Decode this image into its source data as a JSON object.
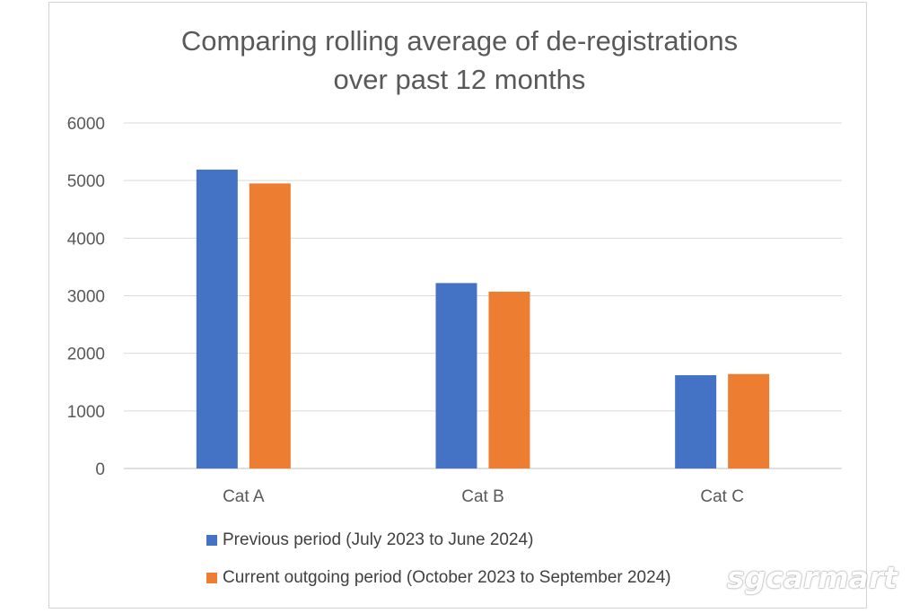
{
  "chart_data": {
    "type": "bar",
    "title": [
      "Comparing rolling average of de-registrations",
      "over past 12 months"
    ],
    "categories": [
      "Cat A",
      "Cat B",
      "Cat C"
    ],
    "series": [
      {
        "name": "Previous period (July 2023 to June 2024)",
        "values": [
          5190,
          3220,
          1620
        ],
        "color": "#4472c4"
      },
      {
        "name": "Current outgoing period (October 2023 to September 2024)",
        "values": [
          4950,
          3070,
          1640
        ],
        "color": "#ed7d31"
      }
    ],
    "yticks": [
      0,
      1000,
      2000,
      3000,
      4000,
      5000,
      6000
    ],
    "ylim": [
      0,
      6000
    ],
    "xlabel": "",
    "ylabel": "",
    "grid": true,
    "legend_position": "bottom"
  },
  "watermark": "sgcarmart"
}
